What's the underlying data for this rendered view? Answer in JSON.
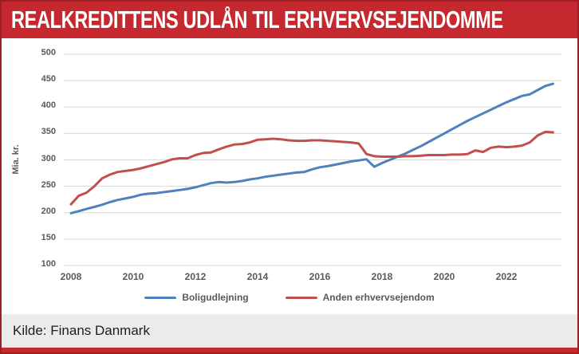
{
  "header": {
    "title": "REALKREDITTENS UDLÅN TIL ERHVERVSEJENDOMME"
  },
  "footer": {
    "source": "Kilde: Finans Danmark"
  },
  "colors": {
    "banner_red": "#c5282f",
    "border_red": "#9c1f24",
    "grid_gray": "#d9d9d9",
    "tick_text_gray": "#595959",
    "footer_bg_gray": "#ebebeb",
    "series_blue": "#4f81bd",
    "series_red": "#c0504d"
  },
  "chart_data": {
    "type": "line",
    "title": "REALKREDITTENS UDLÅN TIL ERHVERVSEJENDOMME",
    "xlabel": "",
    "ylabel": "Mia. kr.",
    "ylim": [
      100,
      500
    ],
    "xlim": [
      2008,
      2023.5
    ],
    "y_ticks": [
      500,
      450,
      400,
      350,
      300,
      250,
      200,
      150,
      100
    ],
    "x_ticks": [
      2008,
      2010,
      2012,
      2014,
      2016,
      2018,
      2020,
      2022
    ],
    "grid": "horizontal",
    "legend_position": "bottom",
    "x": [
      2008.0,
      2008.25,
      2008.5,
      2008.75,
      2009.0,
      2009.25,
      2009.5,
      2009.75,
      2010.0,
      2010.25,
      2010.5,
      2010.75,
      2011.0,
      2011.25,
      2011.5,
      2011.75,
      2012.0,
      2012.25,
      2012.5,
      2012.75,
      2013.0,
      2013.25,
      2013.5,
      2013.75,
      2014.0,
      2014.25,
      2014.5,
      2014.75,
      2015.0,
      2015.25,
      2015.5,
      2015.75,
      2016.0,
      2016.25,
      2016.5,
      2016.75,
      2017.0,
      2017.25,
      2017.5,
      2017.75,
      2018.0,
      2018.25,
      2018.5,
      2018.75,
      2019.0,
      2019.25,
      2019.5,
      2019.75,
      2020.0,
      2020.25,
      2020.5,
      2020.75,
      2021.0,
      2021.25,
      2021.5,
      2021.75,
      2022.0,
      2022.25,
      2022.5,
      2022.75,
      2023.0,
      2023.25,
      2023.5
    ],
    "series": [
      {
        "name": "Boligudlejning",
        "color": "#4f81bd",
        "values": [
          199,
          203,
          207,
          211,
          215,
          220,
          224,
          227,
          230,
          234,
          236,
          237,
          239,
          241,
          243,
          245,
          248,
          252,
          256,
          258,
          257,
          258,
          260,
          263,
          265,
          268,
          270,
          272,
          274,
          276,
          277,
          282,
          286,
          288,
          291,
          294,
          297,
          299,
          301,
          287,
          294,
          300,
          306,
          312,
          319,
          326,
          334,
          342,
          350,
          358,
          366,
          374,
          381,
          388,
          395,
          402,
          409,
          415,
          421,
          424,
          432,
          440,
          444
        ]
      },
      {
        "name": "Anden erhvervsejendom",
        "color": "#c0504d",
        "values": [
          216,
          232,
          238,
          250,
          265,
          272,
          277,
          279,
          281,
          284,
          288,
          292,
          296,
          301,
          303,
          303,
          309,
          313,
          314,
          320,
          325,
          329,
          330,
          333,
          338,
          339,
          340,
          339,
          337,
          336,
          336,
          337,
          337,
          336,
          335,
          334,
          333,
          331,
          311,
          307,
          306,
          306,
          306,
          307,
          307,
          308,
          309,
          309,
          309,
          310,
          310,
          311,
          318,
          315,
          323,
          325,
          324,
          325,
          327,
          333,
          346,
          353,
          352
        ]
      }
    ]
  }
}
